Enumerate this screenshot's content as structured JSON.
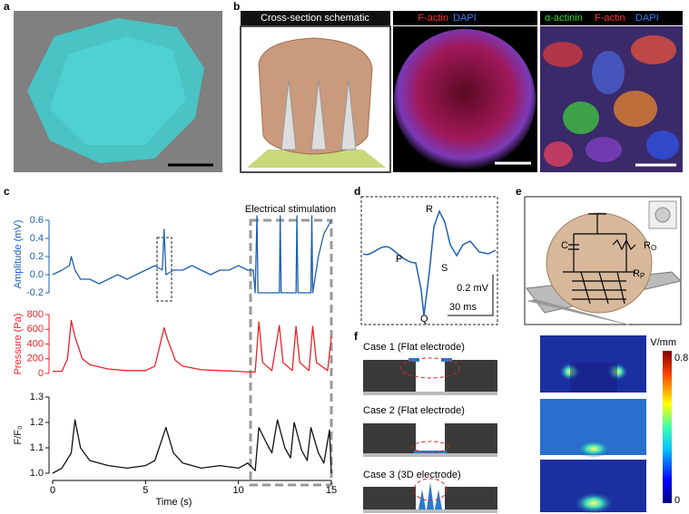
{
  "panel_labels": [
    "a",
    "b",
    "c",
    "d",
    "e",
    "f"
  ],
  "panel_b": {
    "schematic_title": "Cross-section schematic",
    "image2_stains": [
      "F-actin",
      "DAPI"
    ],
    "image3_stains": [
      "α-actinin",
      "F-actin",
      "DAPI"
    ]
  },
  "panel_d": {
    "waves": [
      "P",
      "Q",
      "R",
      "S"
    ],
    "scale_voltage": "0.2 mV",
    "scale_time": "30 ms"
  },
  "panel_e": {
    "components": [
      {
        "symbol": "C"
      },
      {
        "symbol": "R",
        "subscript": "O"
      },
      {
        "symbol": "R",
        "subscript": "P"
      }
    ]
  },
  "panel_f": {
    "cases": [
      "Case 1 (Flat electrode)",
      "Case 2 (Flat electrode)",
      "Case 3 (3D electrode)"
    ],
    "colorbar": {
      "unit": "V/mm",
      "max": 0.8,
      "min": 0
    }
  },
  "chart_data": [
    {
      "type": "line",
      "ylabel": "Amplitude (mV)",
      "color": "#1f5fae",
      "annotation": "Electrical stimulation",
      "x": [
        0,
        0.5,
        0.9,
        1.0,
        1.2,
        1.5,
        2,
        2.5,
        3,
        3.5,
        4,
        4.5,
        5,
        5.5,
        5.9,
        6.0,
        6.1,
        6.5,
        7,
        7.5,
        8,
        8.5,
        9,
        9.5,
        10,
        10.5,
        10.8,
        10.9,
        11.0,
        11.05,
        12.2,
        12.25,
        12.3,
        13.1,
        13.15,
        13.2,
        13.9,
        13.95,
        14.0,
        14.3,
        14.6,
        15
      ],
      "values": [
        0,
        0.05,
        0.1,
        0.2,
        0.05,
        -0.05,
        -0.05,
        -0.1,
        -0.05,
        0,
        -0.05,
        0,
        0.05,
        0.1,
        0.05,
        0.5,
        0,
        0.05,
        0.05,
        0.1,
        0.05,
        0,
        0.05,
        0.05,
        0.1,
        0.05,
        0.05,
        -0.2,
        0.65,
        -0.2,
        -0.2,
        0.65,
        -0.2,
        -0.2,
        0.65,
        -0.2,
        -0.2,
        0.65,
        -0.2,
        0.2,
        0.45,
        0.6
      ],
      "xlim": [
        0,
        15
      ],
      "ylim": [
        -0.2,
        0.65
      ],
      "yticks": [
        -0.2,
        {
          "value": 0,
          "label": "0.0"
        },
        0.2,
        0.4,
        0.6
      ]
    },
    {
      "type": "line",
      "ylabel": "Pressure (Pa)",
      "color": "#e8232a",
      "x": [
        0,
        0.5,
        0.8,
        1.0,
        1.2,
        1.6,
        2,
        3,
        4,
        5,
        5.5,
        6.0,
        6.2,
        6.6,
        7,
        8,
        9,
        10,
        10.5,
        10.9,
        11.1,
        11.3,
        11.8,
        12.2,
        12.4,
        12.9,
        13.1,
        13.3,
        13.8,
        14.0,
        14.2,
        14.8,
        15
      ],
      "values": [
        30,
        30,
        200,
        720,
        500,
        200,
        120,
        60,
        40,
        40,
        100,
        620,
        450,
        180,
        100,
        50,
        40,
        30,
        20,
        20,
        700,
        150,
        40,
        650,
        150,
        40,
        640,
        150,
        40,
        640,
        150,
        40,
        500
      ],
      "xlim": [
        0,
        15
      ],
      "ylim": [
        0,
        800
      ],
      "yticks": [
        0,
        200,
        400,
        600,
        800
      ]
    },
    {
      "type": "line",
      "ylabel": "F/F₀",
      "color": "#111111",
      "xlabel": "Time (s)",
      "x": [
        0,
        0.5,
        1.0,
        1.2,
        1.5,
        2,
        3,
        4,
        5,
        5.5,
        6.1,
        6.5,
        7,
        8,
        9,
        10,
        10.5,
        10.9,
        11.1,
        11.5,
        11.8,
        12.1,
        12.5,
        12.8,
        13.0,
        13.4,
        13.7,
        13.9,
        14.3,
        14.6,
        14.9,
        15
      ],
      "values": [
        1.0,
        1.02,
        1.08,
        1.21,
        1.1,
        1.05,
        1.03,
        1.02,
        1.03,
        1.05,
        1.18,
        1.08,
        1.04,
        1.02,
        1.03,
        1.02,
        1.04,
        1.01,
        1.18,
        1.12,
        1.08,
        1.21,
        1.1,
        1.06,
        1.2,
        1.09,
        1.05,
        1.18,
        1.08,
        1.04,
        1.17,
        1.0
      ],
      "xlim": [
        0,
        15
      ],
      "ylim": [
        1.0,
        1.3
      ],
      "xticks": [
        0,
        5,
        10,
        15
      ],
      "yticks": [
        {
          "value": 1,
          "label": "1.0"
        },
        1.1,
        1.2,
        1.3
      ]
    }
  ]
}
